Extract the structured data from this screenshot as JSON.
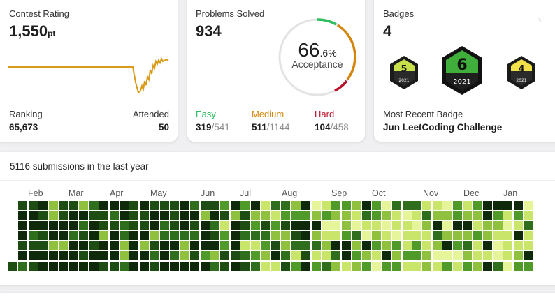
{
  "contest": {
    "label": "Contest Rating",
    "rating": "1,550",
    "unit": "pt",
    "ranking_label": "Ranking",
    "ranking": "65,673",
    "attended_label": "Attended",
    "attended": "50",
    "line_color": "#d89b1a"
  },
  "solved": {
    "label": "Problems Solved",
    "count": "934",
    "acceptance_int": "66",
    "acceptance_dec": ".6%",
    "acceptance_label": "Acceptance",
    "easy": {
      "label": "Easy",
      "solved": "319",
      "total": "/541",
      "color": "#2cbb5d"
    },
    "medium": {
      "label": "Medium",
      "solved": "511",
      "total": "/1144",
      "color": "#d5850d"
    },
    "hard": {
      "label": "Hard",
      "solved": "104",
      "total": "/458",
      "color": "#b8112b"
    }
  },
  "badges": {
    "label": "Badges",
    "count": "4",
    "items": [
      {
        "number": "5",
        "year": "2021"
      },
      {
        "number": "6",
        "year": "2021"
      },
      {
        "number": "4",
        "year": "2021"
      }
    ],
    "recent_label": "Most Recent Badge",
    "recent_name": "Jun LeetCoding Challenge"
  },
  "heatmap": {
    "title": "5116 submissions in the last year",
    "months": [
      "Feb",
      "Mar",
      "Apr",
      "May",
      "Jun",
      "Jul",
      "Aug",
      "Sep",
      "Oct",
      "Nov",
      "Dec",
      "Jan"
    ],
    "colors": [
      "#0e2a0a",
      "#1d4d13",
      "#2f6e1c",
      "#4f9a28",
      "#8fc13f",
      "#c9e66b",
      "#e6f59a"
    ]
  }
}
